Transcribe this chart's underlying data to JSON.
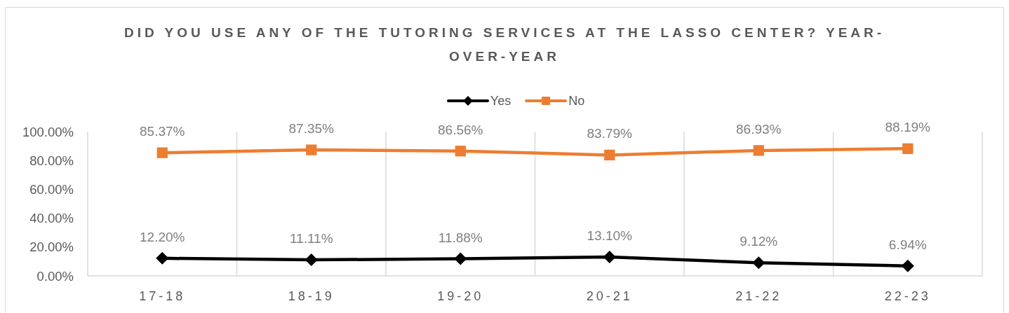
{
  "chart_data": {
    "type": "line",
    "title": "DID YOU USE ANY OF THE TUTORING SERVICES AT THE LASSO CENTER? YEAR-OVER-YEAR",
    "categories": [
      "17-18",
      "18-19",
      "19-20",
      "20-21",
      "21-22",
      "22-23"
    ],
    "series": [
      {
        "name": "Yes",
        "color": "#000000",
        "marker": "diamond",
        "values": [
          12.2,
          11.11,
          11.88,
          13.1,
          9.12,
          6.94
        ],
        "value_labels": [
          "12.20%",
          "11.11%",
          "11.88%",
          "13.10%",
          "9.12%",
          "6.94%"
        ]
      },
      {
        "name": "No",
        "color": "#ed7d31",
        "marker": "square",
        "values": [
          85.37,
          87.35,
          86.56,
          83.79,
          86.93,
          88.19
        ],
        "value_labels": [
          "85.37%",
          "87.35%",
          "86.56%",
          "83.79%",
          "86.93%",
          "88.19%"
        ]
      }
    ],
    "ylim": [
      0,
      100
    ],
    "yticks": [
      {
        "value": 0,
        "label": "0.00%"
      },
      {
        "value": 20,
        "label": "20.00%"
      },
      {
        "value": 40,
        "label": "40.00%"
      },
      {
        "value": 60,
        "label": "60.00%"
      },
      {
        "value": 80,
        "label": "80.00%"
      },
      {
        "value": 100,
        "label": "100.00%"
      }
    ],
    "grid": "x",
    "legend": "top"
  }
}
